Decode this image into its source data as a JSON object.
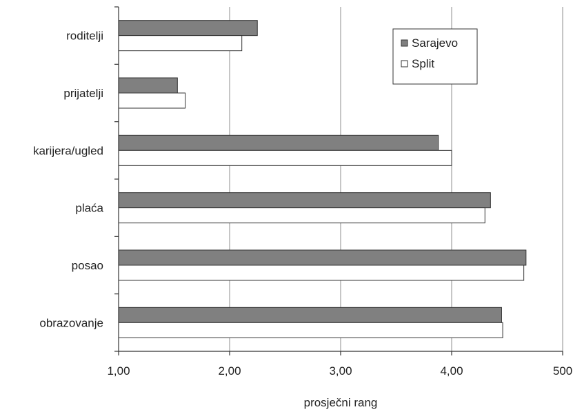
{
  "chart_data": {
    "type": "bar",
    "orientation": "horizontal",
    "categories": [
      "roditelji",
      "prijatelji",
      "karijera/ugled",
      "plaća",
      "posao",
      "obrazovanje"
    ],
    "series": [
      {
        "name": "Sarajevo",
        "values": [
          2.25,
          1.53,
          3.88,
          4.35,
          4.67,
          4.45
        ],
        "color": "#808080"
      },
      {
        "name": "Split",
        "values": [
          2.11,
          1.6,
          4.0,
          4.3,
          4.65,
          4.46
        ],
        "color": "#ffffff"
      }
    ],
    "xlabel": "prosječni rang",
    "xlim": [
      1,
      5
    ],
    "xticks": [
      1,
      2,
      3,
      4,
      5
    ],
    "xtick_labels": [
      "1,00",
      "2,00",
      "3,00",
      "4,00",
      "500"
    ],
    "grid": "vertical",
    "legend_position": "top-right"
  }
}
